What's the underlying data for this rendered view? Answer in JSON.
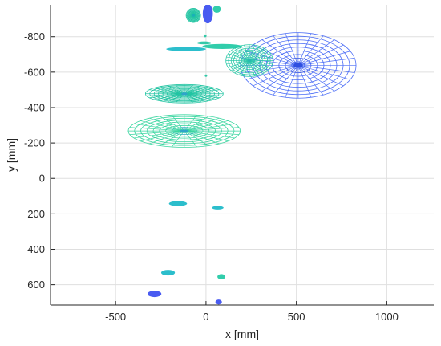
{
  "chart_data": {
    "type": "scatter",
    "xlabel": "x [mm]",
    "ylabel": "y [mm]",
    "xlim": [
      -860,
      1260
    ],
    "ylim": [
      -980,
      715
    ],
    "y_reversed": true,
    "grid": true,
    "x_ticks": [
      -500,
      0,
      500,
      1000
    ],
    "y_ticks": [
      -800,
      -600,
      -400,
      -200,
      0,
      200,
      400,
      600
    ],
    "colormap": "winter",
    "palette": {
      "blue": "#3a5cf0",
      "green": "#22c7a0",
      "teal": "#1ab8c8"
    },
    "mesh_objects": [
      {
        "cx": 510,
        "cy": -638,
        "rx": 320,
        "ry": 185,
        "color": "#4a6cf6",
        "inner": "#2f4fe0"
      },
      {
        "cx": 240,
        "cy": -665,
        "rx": 130,
        "ry": 90,
        "color": "#2cc9a8",
        "inner": "#26b9b0"
      },
      {
        "cx": -120,
        "cy": -478,
        "rx": 215,
        "ry": 52,
        "color": "#22c4a2",
        "inner": "#2fa4c9"
      },
      {
        "cx": -120,
        "cy": -268,
        "rx": 310,
        "ry": 92,
        "color": "#3ad6a0",
        "inner": "#2fa4c9"
      },
      {
        "cx": -70,
        "cy": -920,
        "rx": 40,
        "ry": 40,
        "color": "#22c4a2",
        "inner": "#1ab0b8"
      }
    ],
    "blobs": [
      {
        "cx": 10,
        "cy": -930,
        "rx": 28,
        "ry": 55,
        "color": "#3a4df0"
      },
      {
        "cx": 60,
        "cy": -955,
        "rx": 22,
        "ry": 20,
        "color": "#20c9a4"
      },
      {
        "cx": -110,
        "cy": -730,
        "rx": 110,
        "ry": 12,
        "color": "#1ab8c8"
      },
      {
        "cx": 90,
        "cy": -745,
        "rx": 110,
        "ry": 14,
        "color": "#20c9a4"
      },
      {
        "cx": -10,
        "cy": -765,
        "rx": 40,
        "ry": 8,
        "color": "#22c4a2"
      },
      {
        "cx": -5,
        "cy": -805,
        "rx": 8,
        "ry": 8,
        "color": "#22c4a2"
      },
      {
        "cx": 0,
        "cy": -580,
        "rx": 5,
        "ry": 5,
        "color": "#22c4a2"
      },
      {
        "cx": -155,
        "cy": 142,
        "rx": 50,
        "ry": 14,
        "color": "#1ab8c8"
      },
      {
        "cx": 65,
        "cy": 165,
        "rx": 32,
        "ry": 10,
        "color": "#1ab8c8"
      },
      {
        "cx": -210,
        "cy": 532,
        "rx": 38,
        "ry": 16,
        "color": "#1ab8c8"
      },
      {
        "cx": 85,
        "cy": 555,
        "rx": 22,
        "ry": 15,
        "color": "#20c9a4"
      },
      {
        "cx": -285,
        "cy": 652,
        "rx": 38,
        "ry": 18,
        "color": "#3a4df0"
      },
      {
        "cx": 70,
        "cy": 698,
        "rx": 18,
        "ry": 14,
        "color": "#3a4df0"
      }
    ]
  }
}
